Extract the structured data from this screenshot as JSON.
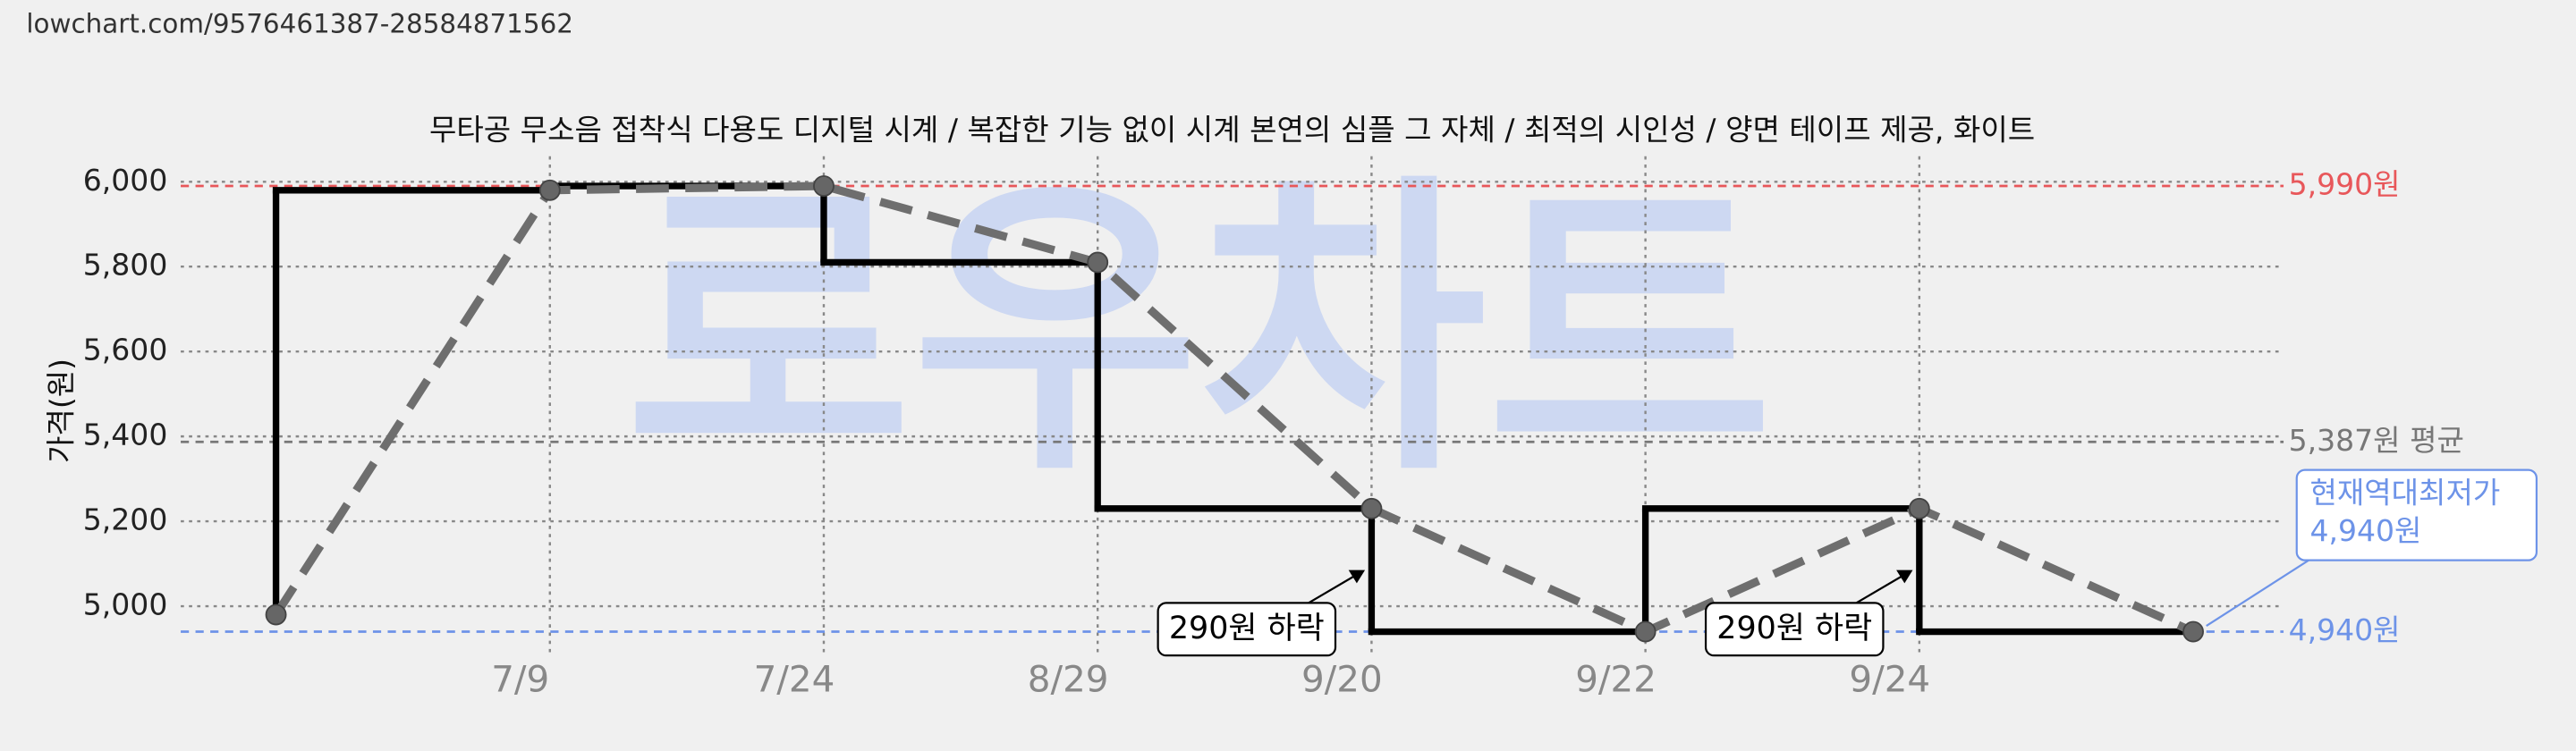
{
  "url": "lowchart.com/9576461387-28584871562",
  "chart_data": {
    "type": "line",
    "title": "무타공 무소음 접착식 다용도 디지털 시계 / 복잡한 기능 없이 시계 본연의 심플 그 자체 / 최적의 시인성 / 양면 테이프 제공, 화이트",
    "ylabel": "가격(원)",
    "watermark": "로우차트",
    "categories": [
      null,
      "7/9",
      "7/24",
      "8/29",
      "9/20",
      "9/22",
      "9/24",
      null
    ],
    "values": [
      4980,
      5980,
      5990,
      5810,
      5230,
      4940,
      5230,
      4940
    ],
    "color": "#6e6e6e",
    "step_color": "#000000",
    "ylim": [
      4880,
      6060
    ],
    "yticks": [
      {
        "value": 5000,
        "label": "5,000"
      },
      {
        "value": 5200,
        "label": "5,200"
      },
      {
        "value": 5400,
        "label": "5,400"
      },
      {
        "value": 5600,
        "label": "5,600"
      },
      {
        "value": 5800,
        "label": "5,800"
      },
      {
        "value": 6000,
        "label": "6,000"
      }
    ],
    "grid": true,
    "reference_lines": [
      {
        "value": 5990,
        "label": "5,990원",
        "color": "#e8575a"
      },
      {
        "value": 5387,
        "label": "5,387원 평균",
        "color": "#777777"
      },
      {
        "value": 4940,
        "label": "4,940원",
        "color": "#6d93e8"
      }
    ],
    "annotations": [
      {
        "text": "290원 하락"
      },
      {
        "text": "290원 하락"
      }
    ],
    "current_low": {
      "title": "현재역대최저가",
      "value": 4940,
      "label": "4,940원",
      "color": "#6d93e8"
    }
  }
}
